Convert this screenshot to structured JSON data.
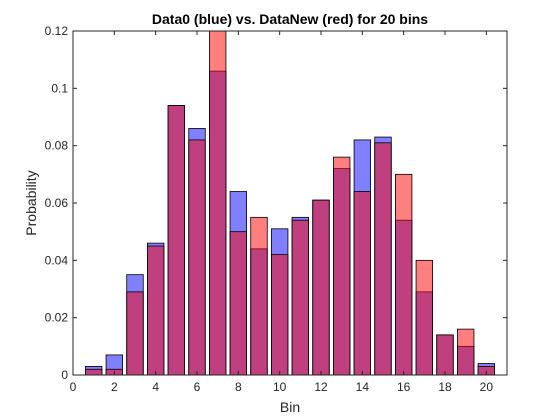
{
  "chart_data": {
    "type": "bar",
    "title": "Data0 (blue) vs. DataNew (red) for 20 bins",
    "xlabel": "Bin",
    "ylabel": "Probability",
    "xlim": [
      0,
      21
    ],
    "ylim": [
      0,
      0.12
    ],
    "xticks": [
      0,
      2,
      4,
      6,
      8,
      10,
      12,
      14,
      16,
      18,
      20
    ],
    "xtick_labels": [
      "0",
      "2",
      "4",
      "6",
      "8",
      "10",
      "12",
      "14",
      "16",
      "18",
      "20"
    ],
    "yticks": [
      0,
      0.02,
      0.04,
      0.06,
      0.08,
      0.1,
      0.12
    ],
    "ytick_labels": [
      "0",
      "0.02",
      "0.04",
      "0.06",
      "0.08",
      "0.1",
      "0.12"
    ],
    "categories": [
      1,
      2,
      3,
      4,
      5,
      6,
      7,
      8,
      9,
      10,
      11,
      12,
      13,
      14,
      15,
      16,
      17,
      18,
      19,
      20
    ],
    "series": [
      {
        "color": "#0000ff",
        "values": [
          0.003,
          0.007,
          0.035,
          0.046,
          0.094,
          0.086,
          0.106,
          0.064,
          0.044,
          0.051,
          0.055,
          0.061,
          0.072,
          0.082,
          0.083,
          0.054,
          0.029,
          0.014,
          0.01,
          0.004
        ]
      },
      {
        "color": "#ff0000",
        "values": [
          0.002,
          0.002,
          0.029,
          0.045,
          0.094,
          0.082,
          0.121,
          0.05,
          0.055,
          0.042,
          0.054,
          0.061,
          0.076,
          0.064,
          0.081,
          0.07,
          0.04,
          0.014,
          0.016,
          0.003
        ]
      }
    ],
    "grid": false,
    "box": true
  }
}
